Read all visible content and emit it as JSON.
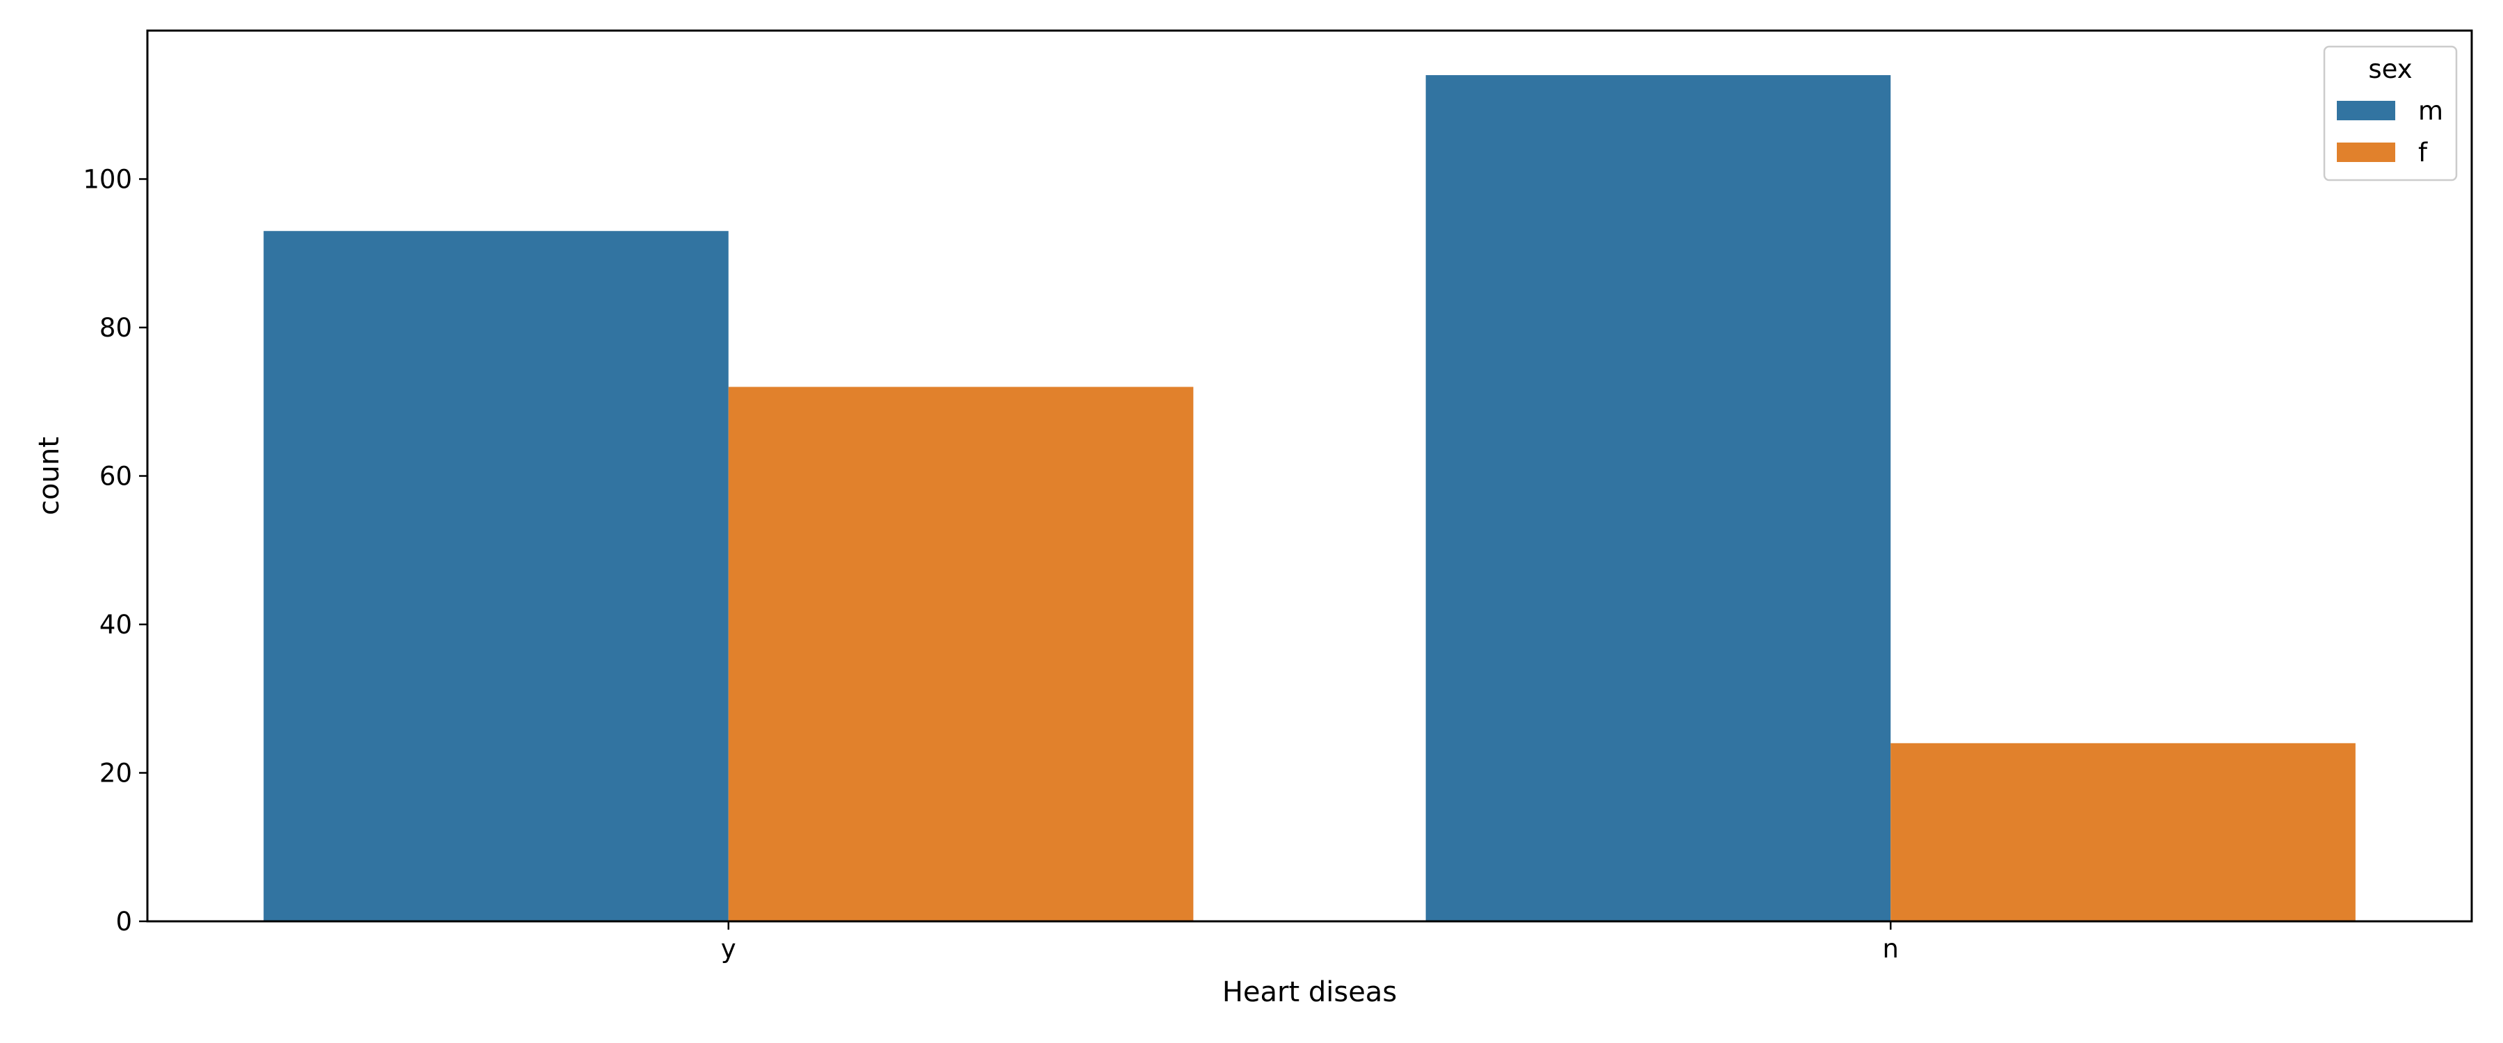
{
  "chart_data": {
    "type": "bar",
    "title": "",
    "xlabel": "Heart diseas",
    "ylabel": "count",
    "categories": [
      "y",
      "n"
    ],
    "series": [
      {
        "name": "m",
        "values": [
          93,
          114
        ],
        "color": "#3274a1"
      },
      {
        "name": "f",
        "values": [
          72,
          24
        ],
        "color": "#e1812c"
      }
    ],
    "ylim": [
      0,
      120
    ],
    "yticks": [
      0,
      20,
      40,
      60,
      80,
      100
    ],
    "grid": false,
    "legend": {
      "title": "sex",
      "position": "top-right"
    }
  }
}
